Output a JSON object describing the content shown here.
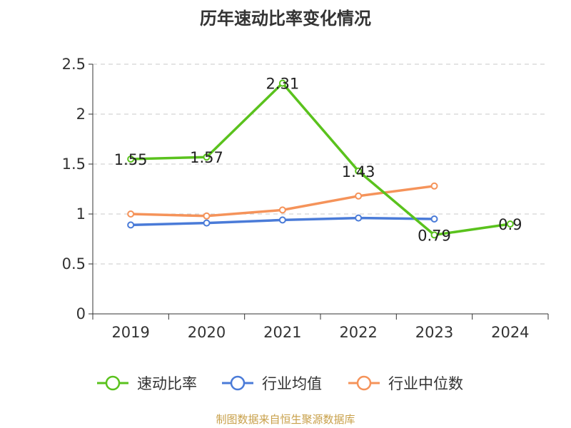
{
  "title": "历年速动比率变化情况",
  "source_note": "制图数据来自恒生聚源数据库",
  "chart_data": {
    "type": "line",
    "title": "历年速动比率变化情况",
    "xlabel": "",
    "ylabel": "",
    "categories": [
      "2019",
      "2020",
      "2021",
      "2022",
      "2023",
      "2024"
    ],
    "ylim": [
      0,
      2.5
    ],
    "yticks": [
      0,
      0.5,
      1,
      1.5,
      2,
      2.5
    ],
    "ytick_labels": [
      "0",
      "0.5",
      "1",
      "1.5",
      "2",
      "2.5"
    ],
    "grid": true,
    "legend_position": "bottom",
    "series": [
      {
        "name": "速动比率",
        "color": "#5ac21d",
        "values": [
          1.55,
          1.57,
          2.31,
          1.43,
          0.79,
          0.9
        ],
        "labels": [
          "1.55",
          "1.57",
          "2.31",
          "1.43",
          "0.79",
          "0.9"
        ]
      },
      {
        "name": "行业均值",
        "color": "#4a7bd8",
        "values": [
          0.89,
          0.91,
          0.94,
          0.96,
          0.95,
          null
        ]
      },
      {
        "name": "行业中位数",
        "color": "#f5935a",
        "values": [
          1.0,
          0.98,
          1.04,
          1.18,
          1.28,
          null
        ]
      }
    ]
  }
}
